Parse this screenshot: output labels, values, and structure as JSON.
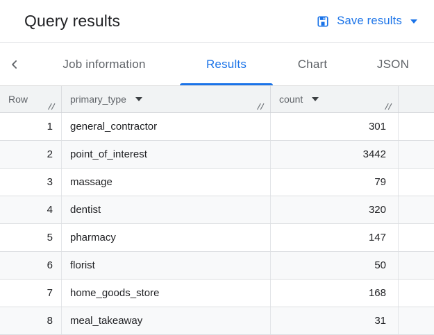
{
  "header": {
    "title": "Query results",
    "save_button": {
      "label": "Save results"
    }
  },
  "tabs": {
    "items": [
      {
        "label": "Job information",
        "active": false
      },
      {
        "label": "Results",
        "active": true
      },
      {
        "label": "Chart",
        "active": false
      },
      {
        "label": "JSON",
        "active": false
      }
    ]
  },
  "table": {
    "columns": [
      {
        "label": "Row",
        "has_menu": false
      },
      {
        "label": "primary_type",
        "has_menu": true
      },
      {
        "label": "count",
        "has_menu": true
      }
    ],
    "rows": [
      {
        "row": 1,
        "primary_type": "general_contractor",
        "count": 301
      },
      {
        "row": 2,
        "primary_type": "point_of_interest",
        "count": 3442
      },
      {
        "row": 3,
        "primary_type": "massage",
        "count": 79
      },
      {
        "row": 4,
        "primary_type": "dentist",
        "count": 320
      },
      {
        "row": 5,
        "primary_type": "pharmacy",
        "count": 147
      },
      {
        "row": 6,
        "primary_type": "florist",
        "count": 50
      },
      {
        "row": 7,
        "primary_type": "home_goods_store",
        "count": 168
      },
      {
        "row": 8,
        "primary_type": "meal_takeaway",
        "count": 31
      }
    ]
  },
  "colors": {
    "accent_blue": "#1a73e8",
    "title_text": "#202124",
    "inactive_tab_text": "#5f6368",
    "table_header_bg": "#f1f3f4",
    "alt_row_bg": "#f8f9fa",
    "border": "#dadce0"
  }
}
